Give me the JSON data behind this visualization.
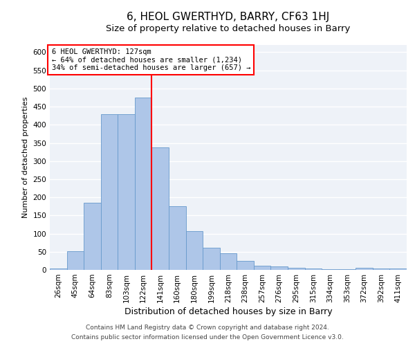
{
  "title": "6, HEOL GWERTHYD, BARRY, CF63 1HJ",
  "subtitle": "Size of property relative to detached houses in Barry",
  "xlabel": "Distribution of detached houses by size in Barry",
  "ylabel": "Number of detached properties",
  "bar_labels": [
    "26sqm",
    "45sqm",
    "64sqm",
    "83sqm",
    "103sqm",
    "122sqm",
    "141sqm",
    "160sqm",
    "180sqm",
    "199sqm",
    "218sqm",
    "238sqm",
    "257sqm",
    "276sqm",
    "295sqm",
    "315sqm",
    "334sqm",
    "353sqm",
    "372sqm",
    "392sqm",
    "411sqm"
  ],
  "bar_values": [
    3,
    52,
    185,
    430,
    430,
    475,
    338,
    175,
    107,
    62,
    46,
    24,
    11,
    9,
    6,
    4,
    2,
    1,
    5,
    3,
    4
  ],
  "bar_color": "#aec6e8",
  "bar_edge_color": "#6699cc",
  "annotation_text_line1": "6 HEOL GWERTHYD: 127sqm",
  "annotation_text_line2": "← 64% of detached houses are smaller (1,234)",
  "annotation_text_line3": "34% of semi-detached houses are larger (657) →",
  "annotation_box_color": "white",
  "annotation_box_edge_color": "red",
  "vline_color": "red",
  "vline_x_index": 5,
  "ylim": [
    0,
    620
  ],
  "yticks": [
    0,
    50,
    100,
    150,
    200,
    250,
    300,
    350,
    400,
    450,
    500,
    550,
    600
  ],
  "background_color": "#eef2f8",
  "grid_color": "white",
  "footer_line1": "Contains HM Land Registry data © Crown copyright and database right 2024.",
  "footer_line2": "Contains public sector information licensed under the Open Government Licence v3.0.",
  "title_fontsize": 11,
  "subtitle_fontsize": 9.5,
  "xlabel_fontsize": 9,
  "ylabel_fontsize": 8,
  "tick_fontsize": 7.5,
  "annotation_fontsize": 7.5,
  "footer_fontsize": 6.5
}
